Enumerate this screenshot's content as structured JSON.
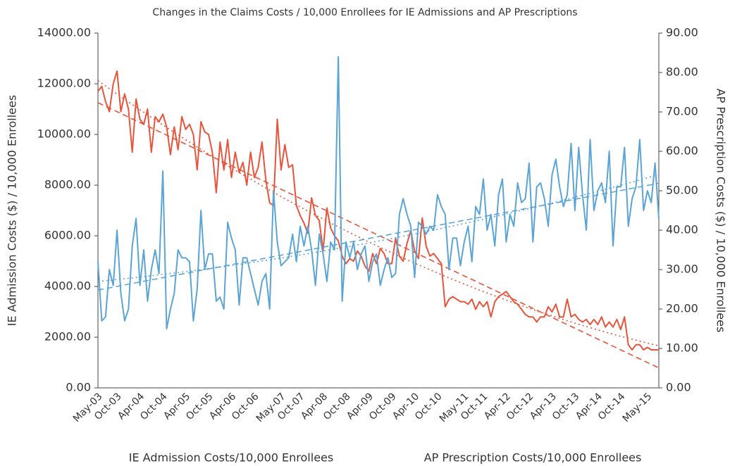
{
  "chart_data": {
    "type": "line",
    "title": "Changes in the Claims Costs / 10,000 Enrollees for IE Admissions and AP Prescriptions",
    "y_label": "IE Admission Costs ($) / 10,000 Enrollees",
    "y2_label": "AP Prescription Costs ($) / 10,000 Enrollees",
    "categories": [
      "May-03",
      null,
      null,
      null,
      null,
      "Oct-03",
      null,
      null,
      null,
      null,
      null,
      "Apr-04",
      null,
      null,
      null,
      null,
      null,
      "Oct-04",
      null,
      null,
      null,
      null,
      null,
      "Apr-05",
      null,
      null,
      null,
      null,
      null,
      "Oct-05",
      null,
      null,
      null,
      null,
      null,
      "Apr-06",
      null,
      null,
      null,
      null,
      null,
      "Oct-06",
      null,
      null,
      null,
      null,
      null,
      null,
      "May-07",
      null,
      null,
      null,
      null,
      "Oct-07",
      null,
      null,
      null,
      null,
      null,
      "Apr-08",
      null,
      null,
      null,
      null,
      null,
      "Oct-08",
      null,
      null,
      null,
      null,
      null,
      "Apr-09",
      null,
      null,
      null,
      null,
      null,
      "Oct-09",
      null,
      null,
      null,
      null,
      null,
      "Apr-10",
      null,
      null,
      null,
      null,
      null,
      "Oct-10",
      null,
      null,
      null,
      null,
      null,
      null,
      "May-11",
      null,
      null,
      null,
      null,
      "Oct-11",
      null,
      null,
      null,
      null,
      null,
      "Apr-12",
      null,
      null,
      null,
      null,
      null,
      "Oct-12",
      null,
      null,
      null,
      null,
      null,
      "Apr-13",
      null,
      null,
      null,
      null,
      null,
      "Oct-13",
      null,
      null,
      null,
      null,
      null,
      "Apr-14",
      null,
      null,
      null,
      null,
      null,
      "Oct-14",
      null,
      null,
      null,
      null,
      null,
      null,
      "May-15",
      null,
      null,
      null
    ],
    "series": [
      {
        "name": "IE Admission Costs/10,000 Enrollees",
        "color": "#e8533a",
        "axis": "y",
        "trendlines": [
          "linear",
          "polynomial"
        ],
        "values": [
          11700,
          11900,
          11300,
          10900,
          12000,
          12500,
          10900,
          11600,
          11000,
          9300,
          11400,
          10600,
          10400,
          11000,
          9300,
          10700,
          10500,
          10800,
          10300,
          9200,
          10300,
          9400,
          10700,
          10200,
          10400,
          10000,
          8600,
          10500,
          10100,
          10000,
          9300,
          7700,
          9700,
          8600,
          9800,
          8300,
          9300,
          8500,
          8900,
          8000,
          9300,
          8300,
          8700,
          9700,
          8200,
          7300,
          7200,
          10600,
          8600,
          9600,
          8700,
          8800,
          7200,
          6800,
          6500,
          6100,
          7500,
          6800,
          6600,
          5400,
          7100,
          6300,
          6000,
          5800,
          5200,
          4900,
          5100,
          5000,
          5400,
          5200,
          4800,
          4600,
          5300,
          4900,
          5500,
          5300,
          4900,
          4900,
          5900,
          5200,
          5000,
          5700,
          6200,
          5400,
          5100,
          6700,
          5600,
          5200,
          5300,
          5100,
          4900,
          3200,
          3500,
          3600,
          3500,
          3400,
          3400,
          3300,
          3500,
          3100,
          3400,
          3200,
          3400,
          2800,
          3400,
          3600,
          3700,
          3800,
          3600,
          3400,
          3300,
          3100,
          2900,
          2800,
          2800,
          2600,
          2800,
          2800,
          3200,
          3000,
          3300,
          2800,
          2800,
          3500,
          2800,
          2900,
          2700,
          2600,
          2700,
          2500,
          2700,
          2500,
          2800,
          2400,
          2600,
          2400,
          2700,
          2300,
          2800,
          1700,
          1500,
          1700,
          1700,
          1500,
          1600,
          1500,
          1500,
          1500
        ]
      },
      {
        "name": "AP Prescription Costs/10,000 Enrollees",
        "color": "#5ba4d6",
        "axis": "y2",
        "trendlines": [
          "linear",
          "polynomial"
        ],
        "values": [
          32,
          17,
          18,
          30,
          26,
          40,
          24,
          17,
          20,
          36,
          43,
          26,
          35,
          22,
          30,
          35,
          29,
          55,
          15,
          20,
          24,
          35,
          33,
          33,
          32,
          17,
          25,
          45,
          30,
          34,
          34,
          22,
          23,
          20,
          42,
          38,
          35,
          21,
          33,
          33,
          29,
          25,
          21,
          27,
          29,
          20,
          50,
          37,
          31,
          32,
          33,
          39,
          32,
          41,
          36,
          41,
          35,
          26,
          39,
          34,
          27,
          37,
          35,
          84,
          22,
          37,
          33,
          37,
          30,
          34,
          36,
          27,
          32,
          34,
          26,
          30,
          33,
          28,
          29,
          44,
          48,
          44,
          41,
          28,
          42,
          41,
          39,
          41,
          40,
          49,
          46,
          44,
          30,
          38,
          38,
          31,
          37,
          41,
          32,
          46,
          44,
          53,
          40,
          44,
          36,
          49,
          53,
          37,
          44,
          41,
          52,
          47,
          48,
          57,
          37,
          51,
          52,
          48,
          41,
          54,
          58,
          51,
          46,
          49,
          62,
          45,
          61,
          49,
          40,
          63,
          45,
          50,
          52,
          47,
          60,
          36,
          51,
          51,
          61,
          41,
          48,
          51,
          63,
          45,
          50,
          47,
          57,
          43
        ]
      }
    ],
    "ylim": [
      0,
      14000
    ],
    "yticks": [
      {
        "value": 0,
        "label": "0.00"
      },
      {
        "value": 2000,
        "label": "2000.00"
      },
      {
        "value": 4000,
        "label": "4000.00"
      },
      {
        "value": 6000,
        "label": "6000.00"
      },
      {
        "value": 8000,
        "label": "8000.00"
      },
      {
        "value": 10000,
        "label": "10000.00"
      },
      {
        "value": 12000,
        "label": "12000.00"
      },
      {
        "value": 14000,
        "label": "14000.00"
      }
    ],
    "y2lim": [
      0,
      90
    ],
    "y2ticks": [
      {
        "value": 0,
        "label": "0.00"
      },
      {
        "value": 10,
        "label": "10.00"
      },
      {
        "value": 20,
        "label": "20.00"
      },
      {
        "value": 30,
        "label": "30.00"
      },
      {
        "value": 40,
        "label": "40.00"
      },
      {
        "value": 50,
        "label": "50.00"
      },
      {
        "value": 60,
        "label": "60.00"
      },
      {
        "value": 70,
        "label": "70.00"
      },
      {
        "value": 80,
        "label": "80.00"
      },
      {
        "value": 90,
        "label": "90.00"
      }
    ],
    "legend": "bottom"
  }
}
